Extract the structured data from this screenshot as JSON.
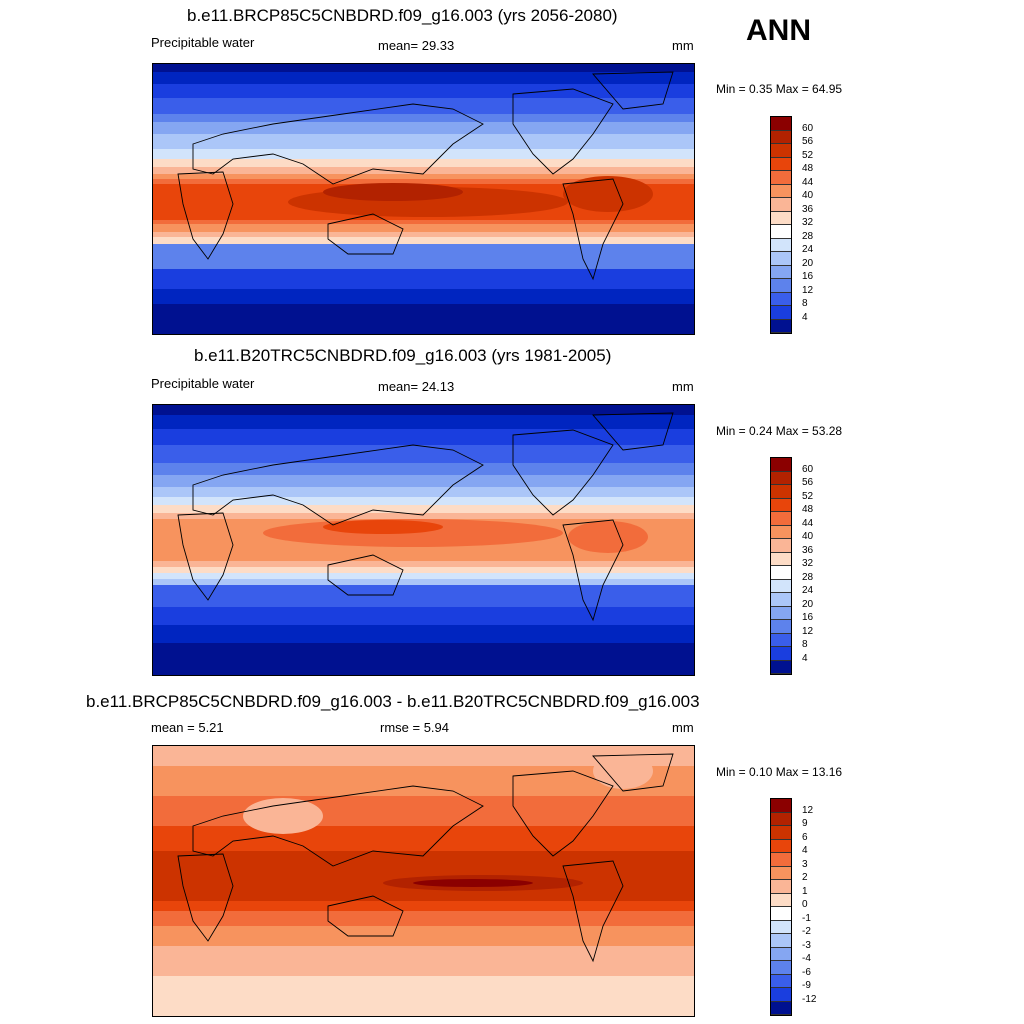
{
  "season_label": "ANN",
  "panels": [
    {
      "title": "b.e11.BRCP85C5CNBDRD.f09_g16.003 (yrs 2056-2080)",
      "left_label": "Precipitable water",
      "center_label": "mean=  29.33",
      "units": "mm",
      "minmax": "Min =   0.35 Max =  64.95",
      "colorbar": {
        "levels": [
          "60",
          "56",
          "52",
          "48",
          "44",
          "40",
          "36",
          "32",
          "28",
          "24",
          "20",
          "16",
          "12",
          "8",
          "4"
        ],
        "colors": [
          "#8b0000",
          "#b22200",
          "#cc3300",
          "#e8450b",
          "#f26c3b",
          "#f7935e",
          "#fab596",
          "#fddcc6",
          "#ffffff",
          "#d2e4fb",
          "#abc6f8",
          "#85a6f2",
          "#5d82ec",
          "#3a5eea",
          "#1a3edf",
          "#0025c0",
          "#001190"
        ]
      }
    },
    {
      "title": "b.e11.B20TRC5CNBDRD.f09_g16.003 (yrs 1981-2005)",
      "left_label": "Precipitable water",
      "center_label": "mean=  24.13",
      "units": "mm",
      "minmax": "Min =   0.24 Max =  53.28",
      "colorbar": {
        "levels": [
          "60",
          "56",
          "52",
          "48",
          "44",
          "40",
          "36",
          "32",
          "28",
          "24",
          "20",
          "16",
          "12",
          "8",
          "4"
        ],
        "colors": [
          "#8b0000",
          "#b22200",
          "#cc3300",
          "#e8450b",
          "#f26c3b",
          "#f7935e",
          "#fab596",
          "#fddcc6",
          "#ffffff",
          "#d2e4fb",
          "#abc6f8",
          "#85a6f2",
          "#5d82ec",
          "#3a5eea",
          "#1a3edf",
          "#0025c0",
          "#001190"
        ]
      }
    },
    {
      "title": "b.e11.BRCP85C5CNBDRD.f09_g16.003 - b.e11.B20TRC5CNBDRD.f09_g16.003",
      "left_label": "mean =   5.21",
      "center_label": "rmse =   5.94",
      "units": "mm",
      "minmax": "Min =   0.10 Max =  13.16",
      "colorbar": {
        "levels": [
          "12",
          "9",
          "6",
          "4",
          "3",
          "2",
          "1",
          "0",
          "-1",
          "-2",
          "-3",
          "-4",
          "-6",
          "-9",
          "-12"
        ],
        "colors": [
          "#8b0000",
          "#b22200",
          "#cc3300",
          "#e8450b",
          "#f26c3b",
          "#f7935e",
          "#fab596",
          "#fddcc6",
          "#ffffff",
          "#d2e4fb",
          "#abc6f8",
          "#85a6f2",
          "#5d82ec",
          "#3a5eea",
          "#1a3edf",
          "#0025c0",
          "#001190"
        ]
      }
    }
  ]
}
